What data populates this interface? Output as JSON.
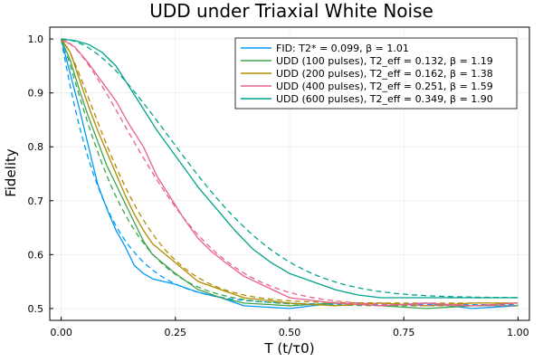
{
  "chart_data": {
    "type": "line",
    "title": "UDD under Triaxial White Noise",
    "xlabel": "T (t/τ0)",
    "ylabel": "Fidelity",
    "xlim": [
      -0.025,
      1.025
    ],
    "ylim": [
      0.478,
      1.022
    ],
    "xticks": [
      0.0,
      0.25,
      0.5,
      0.75,
      1.0
    ],
    "xtick_labels": [
      "0.00",
      "0.25",
      "0.50",
      "0.75",
      "1.00"
    ],
    "yticks": [
      0.5,
      0.6,
      0.7,
      0.8,
      0.9,
      1.0
    ],
    "ytick_labels": [
      "0.5",
      "0.6",
      "0.7",
      "0.8",
      "0.9",
      "1.0"
    ],
    "grid": true,
    "legend_position": "top-right",
    "series": [
      {
        "name": "FID: T2* = 0.099, β = 1.01",
        "color": "#009af9",
        "T2": 0.099,
        "beta": 1.01,
        "plateau": 0.507,
        "x": [
          0.0,
          0.02,
          0.04,
          0.06,
          0.08,
          0.1,
          0.12,
          0.14,
          0.16,
          0.18,
          0.2,
          0.25,
          0.3,
          0.35,
          0.4,
          0.5,
          0.6,
          0.7,
          0.8,
          0.9,
          1.0
        ],
        "y": [
          1.0,
          0.935,
          0.87,
          0.8,
          0.73,
          0.685,
          0.645,
          0.615,
          0.58,
          0.565,
          0.555,
          0.545,
          0.53,
          0.52,
          0.505,
          0.5,
          0.51,
          0.505,
          0.51,
          0.5,
          0.505
        ]
      },
      {
        "name": "UDD (100 pulses), T2_eff = 0.132, β = 1.19",
        "color": "#3ea44e",
        "T2": 0.132,
        "beta": 1.19,
        "plateau": 0.505,
        "x": [
          0.0,
          0.02,
          0.04,
          0.06,
          0.08,
          0.1,
          0.12,
          0.14,
          0.16,
          0.18,
          0.2,
          0.25,
          0.3,
          0.35,
          0.4,
          0.5,
          0.6,
          0.7,
          0.8,
          0.9,
          1.0
        ],
        "y": [
          1.0,
          0.96,
          0.905,
          0.855,
          0.81,
          0.765,
          0.73,
          0.695,
          0.66,
          0.625,
          0.6,
          0.565,
          0.535,
          0.52,
          0.51,
          0.505,
          0.51,
          0.505,
          0.5,
          0.505,
          0.505
        ]
      },
      {
        "name": "UDD (200 pulses), T2_eff = 0.162, β = 1.38",
        "color": "#b18b00",
        "T2": 0.162,
        "beta": 1.38,
        "plateau": 0.51,
        "x": [
          0.0,
          0.02,
          0.04,
          0.06,
          0.08,
          0.1,
          0.12,
          0.14,
          0.16,
          0.18,
          0.2,
          0.25,
          0.3,
          0.35,
          0.4,
          0.5,
          0.6,
          0.7,
          0.8,
          0.9,
          1.0
        ],
        "y": [
          1.0,
          0.975,
          0.925,
          0.875,
          0.83,
          0.79,
          0.75,
          0.71,
          0.675,
          0.645,
          0.62,
          0.585,
          0.55,
          0.535,
          0.52,
          0.51,
          0.505,
          0.51,
          0.505,
          0.51,
          0.51
        ]
      },
      {
        "name": "UDD (400 pulses), T2_eff = 0.251, β = 1.59",
        "color": "#e8618f",
        "T2": 0.251,
        "beta": 1.59,
        "plateau": 0.505,
        "x": [
          0.0,
          0.03,
          0.06,
          0.09,
          0.12,
          0.15,
          0.18,
          0.21,
          0.24,
          0.27,
          0.3,
          0.33,
          0.36,
          0.4,
          0.45,
          0.5,
          0.55,
          0.6,
          0.7,
          0.8,
          0.9,
          1.0
        ],
        "y": [
          1.0,
          0.985,
          0.955,
          0.92,
          0.885,
          0.84,
          0.8,
          0.745,
          0.705,
          0.665,
          0.63,
          0.605,
          0.585,
          0.56,
          0.54,
          0.52,
          0.515,
          0.51,
          0.505,
          0.51,
          0.505,
          0.51
        ]
      },
      {
        "name": "UDD (600 pulses), T2_eff = 0.349, β = 1.90",
        "color": "#00a48c",
        "T2": 0.349,
        "beta": 1.9,
        "plateau": 0.52,
        "x": [
          0.0,
          0.03,
          0.06,
          0.09,
          0.12,
          0.15,
          0.18,
          0.21,
          0.24,
          0.27,
          0.3,
          0.34,
          0.38,
          0.42,
          0.46,
          0.5,
          0.55,
          0.6,
          0.65,
          0.7,
          0.8,
          0.9,
          1.0
        ],
        "y": [
          1.0,
          0.997,
          0.99,
          0.975,
          0.95,
          0.91,
          0.87,
          0.83,
          0.795,
          0.76,
          0.725,
          0.685,
          0.645,
          0.61,
          0.585,
          0.565,
          0.55,
          0.535,
          0.525,
          0.52,
          0.52,
          0.52,
          0.52
        ]
      }
    ]
  }
}
